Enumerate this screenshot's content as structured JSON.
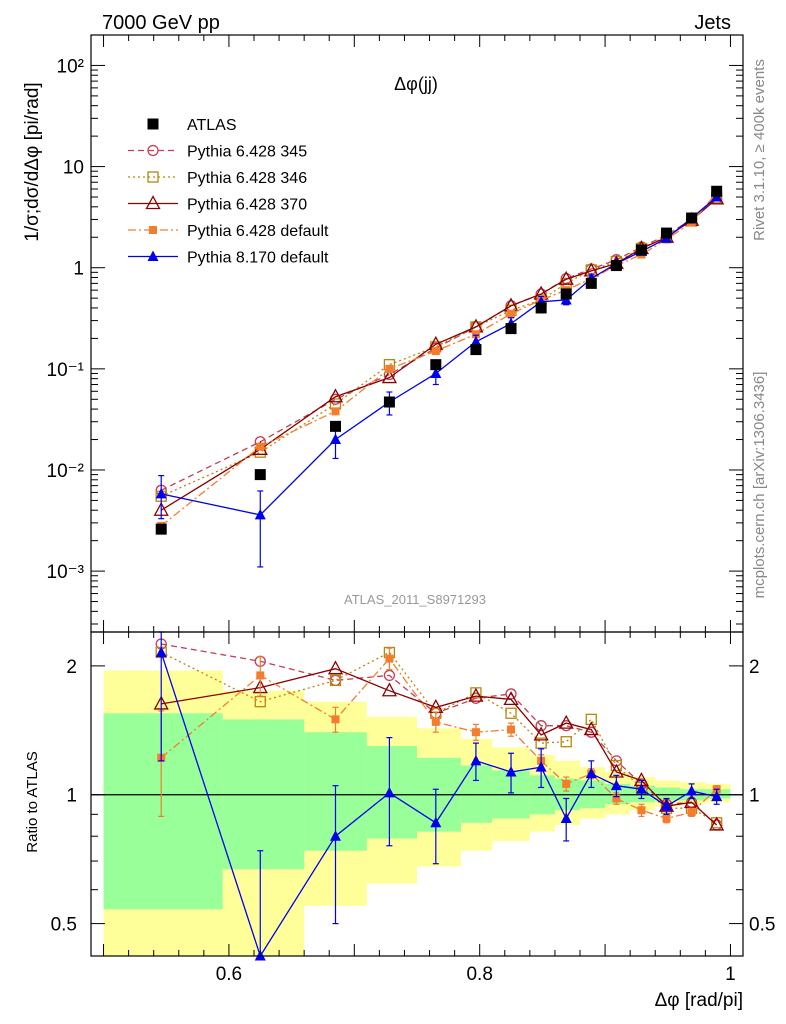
{
  "header": {
    "left": "7000 GeV pp",
    "right": "Jets"
  },
  "plot_title": "Δφ(jj)",
  "watermark": "ATLAS_2011_S8971293",
  "side_labels": {
    "rivet": "Rivet 3.1.10, ≥ 400k events",
    "source": "mcplots.cern.ch [arXiv:1306.3436]"
  },
  "chart_data": [
    {
      "type": "scatter",
      "panel": "main",
      "yscale": "log",
      "ylabel": "1/σ;dσ/dΔφ [pi/rad]",
      "xlim": [
        0.49,
        1.01
      ],
      "ylim": [
        0.00025,
        200
      ],
      "y_ticks": [
        {
          "value": 0.001,
          "label": "10⁻³"
        },
        {
          "value": 0.01,
          "label": "10⁻²"
        },
        {
          "value": 0.1,
          "label": "10⁻¹"
        },
        {
          "value": 1,
          "label": "1"
        },
        {
          "value": 10,
          "label": "10"
        },
        {
          "value": 100,
          "label": "10²"
        }
      ],
      "legend_position": "top-left",
      "series": [
        {
          "name": "ATLAS",
          "color": "#000000",
          "marker": "square-filled",
          "line": "none",
          "x": [
            0.546,
            0.625,
            0.685,
            0.728,
            0.765,
            0.797,
            0.825,
            0.849,
            0.869,
            0.889,
            0.909,
            0.929,
            0.949,
            0.969,
            0.989
          ],
          "y": [
            0.0026,
            0.009,
            0.027,
            0.047,
            0.11,
            0.155,
            0.25,
            0.4,
            0.55,
            0.7,
            1.05,
            1.5,
            2.2,
            3.1,
            5.7
          ]
        },
        {
          "name": "Pythia 6.428 345",
          "color": "#c33e56",
          "marker": "circle-open",
          "line": "dashed",
          "x": [
            0.546,
            0.625,
            0.685,
            0.728,
            0.765,
            0.797,
            0.825,
            0.849,
            0.869,
            0.889,
            0.909,
            0.929,
            0.949,
            0.969,
            0.989
          ],
          "y": [
            0.0063,
            0.019,
            0.05,
            0.088,
            0.16,
            0.26,
            0.42,
            0.55,
            0.78,
            0.97,
            1.2,
            1.6,
            2.1,
            3.0,
            4.8
          ]
        },
        {
          "name": "Pythia 6.428 346",
          "color": "#b8860b",
          "marker": "square-open",
          "line": "dotted",
          "x": [
            0.546,
            0.625,
            0.685,
            0.728,
            0.765,
            0.797,
            0.825,
            0.849,
            0.869,
            0.889,
            0.909,
            0.929,
            0.949,
            0.969,
            0.989
          ],
          "y": [
            0.0055,
            0.015,
            0.045,
            0.11,
            0.165,
            0.26,
            0.38,
            0.48,
            0.7,
            0.95,
            1.15,
            1.55,
            2.05,
            2.9,
            4.9
          ]
        },
        {
          "name": "Pythia 6.428 370",
          "color": "#8b0000",
          "marker": "triangle-open",
          "line": "solid",
          "x": [
            0.546,
            0.625,
            0.685,
            0.728,
            0.765,
            0.797,
            0.825,
            0.849,
            0.869,
            0.889,
            0.909,
            0.929,
            0.949,
            0.969,
            0.989
          ],
          "y": [
            0.004,
            0.016,
            0.053,
            0.082,
            0.175,
            0.26,
            0.42,
            0.55,
            0.77,
            0.93,
            1.1,
            1.55,
            2.0,
            2.95,
            4.8
          ]
        },
        {
          "name": "Pythia 6.428 default",
          "color": "#f47c2c",
          "marker": "square-filled-small",
          "line": "dashdot",
          "x": [
            0.546,
            0.625,
            0.685,
            0.728,
            0.765,
            0.797,
            0.825,
            0.849,
            0.869,
            0.889,
            0.909,
            0.929,
            0.949,
            0.969,
            0.989
          ],
          "y": [
            0.0028,
            0.017,
            0.038,
            0.1,
            0.15,
            0.22,
            0.35,
            0.48,
            0.6,
            0.78,
            1.05,
            1.35,
            1.9,
            2.8,
            5.5
          ]
        },
        {
          "name": "Pythia 8.170 default",
          "color": "#0000ee",
          "marker": "triangle-filled",
          "line": "solid",
          "x": [
            0.546,
            0.625,
            0.685,
            0.728,
            0.765,
            0.797,
            0.825,
            0.849,
            0.869,
            0.889,
            0.909,
            0.929,
            0.949,
            0.969,
            0.989
          ],
          "y": [
            0.0058,
            0.0036,
            0.02,
            0.047,
            0.09,
            0.185,
            0.28,
            0.46,
            0.48,
            0.78,
            1.1,
            1.45,
            1.95,
            3.1,
            5.0
          ],
          "err_low": [
            0.0025,
            0.0025,
            0.007,
            0.012,
            0.02,
            0.03,
            0.04,
            0.06,
            0.05,
            0.07,
            0.08,
            0.1,
            0.12,
            0.15,
            0.2
          ],
          "err_high": [
            0.003,
            0.0026,
            0.007,
            0.012,
            0.02,
            0.03,
            0.04,
            0.06,
            0.05,
            0.07,
            0.08,
            0.1,
            0.12,
            0.15,
            0.2
          ]
        }
      ]
    },
    {
      "type": "line",
      "panel": "ratio",
      "yscale": "log",
      "ylabel": "Ratio to ATLAS",
      "xlabel": "Δφ [rad/pi]",
      "xlim": [
        0.49,
        1.01
      ],
      "ylim": [
        0.42,
        2.4
      ],
      "x_ticks": [
        {
          "value": 0.6,
          "label": "0.6"
        },
        {
          "value": 0.8,
          "label": "0.8"
        },
        {
          "value": 1,
          "label": "1"
        }
      ],
      "y_ticks": [
        {
          "value": 0.5,
          "label": "0.5"
        },
        {
          "value": 1,
          "label": "1"
        },
        {
          "value": 2,
          "label": "2"
        }
      ],
      "bin_edges": [
        0.5,
        0.595,
        0.66,
        0.71,
        0.75,
        0.785,
        0.81,
        0.84,
        0.86,
        0.88,
        0.9,
        0.92,
        0.94,
        0.96,
        0.98,
        1.0
      ],
      "band_1sigma": [
        [
          0.54,
          1.55
        ],
        [
          0.67,
          1.5
        ],
        [
          0.74,
          1.4
        ],
        [
          0.79,
          1.3
        ],
        [
          0.82,
          1.22
        ],
        [
          0.86,
          1.17
        ],
        [
          0.88,
          1.14
        ],
        [
          0.9,
          1.11
        ],
        [
          0.92,
          1.09
        ],
        [
          0.93,
          1.08
        ],
        [
          0.95,
          1.06
        ],
        [
          0.96,
          1.05
        ],
        [
          0.97,
          1.04
        ],
        [
          0.97,
          1.03
        ],
        [
          0.98,
          1.03
        ]
      ],
      "band_2sigma": [
        [
          0.38,
          1.95
        ],
        [
          0.38,
          1.75
        ],
        [
          0.55,
          1.65
        ],
        [
          0.62,
          1.52
        ],
        [
          0.68,
          1.43
        ],
        [
          0.74,
          1.35
        ],
        [
          0.78,
          1.29
        ],
        [
          0.82,
          1.24
        ],
        [
          0.85,
          1.2
        ],
        [
          0.88,
          1.16
        ],
        [
          0.9,
          1.13
        ],
        [
          0.92,
          1.1
        ],
        [
          0.94,
          1.08
        ],
        [
          0.95,
          1.07
        ],
        [
          0.96,
          1.06
        ]
      ],
      "series": [
        {
          "name": "Pythia 6.428 345",
          "color": "#c33e56",
          "marker": "circle-open",
          "line": "dashed",
          "x": [
            0.546,
            0.625,
            0.685,
            0.728,
            0.765,
            0.797,
            0.825,
            0.849,
            0.869,
            0.889,
            0.909,
            0.929,
            0.949,
            0.969,
            0.989
          ],
          "y": [
            2.25,
            2.05,
            1.85,
            1.9,
            1.55,
            1.68,
            1.72,
            1.45,
            1.45,
            1.4,
            1.2,
            1.06,
            0.95,
            0.96,
            0.85
          ]
        },
        {
          "name": "Pythia 6.428 346",
          "color": "#b8860b",
          "marker": "square-open",
          "line": "dotted",
          "x": [
            0.546,
            0.625,
            0.685,
            0.728,
            0.765,
            0.797,
            0.825,
            0.849,
            0.869,
            0.889,
            0.909,
            0.929,
            0.949,
            0.969,
            0.989
          ],
          "y": [
            2.15,
            1.65,
            1.85,
            2.15,
            1.55,
            1.73,
            1.55,
            1.32,
            1.33,
            1.5,
            1.17,
            1.04,
            0.93,
            0.93,
            0.86
          ]
        },
        {
          "name": "Pythia 6.428 370",
          "color": "#8b0000",
          "marker": "triangle-open",
          "line": "solid",
          "x": [
            0.546,
            0.625,
            0.685,
            0.728,
            0.765,
            0.797,
            0.825,
            0.849,
            0.869,
            0.889,
            0.909,
            0.929,
            0.949,
            0.969,
            0.989
          ],
          "y": [
            1.63,
            1.78,
            1.97,
            1.75,
            1.6,
            1.7,
            1.67,
            1.38,
            1.47,
            1.42,
            1.13,
            1.08,
            0.94,
            0.96,
            0.85
          ]
        },
        {
          "name": "Pythia 6.428 default",
          "color": "#f47c2c",
          "marker": "square-filled-small",
          "line": "dashdot",
          "x": [
            0.546,
            0.625,
            0.685,
            0.728,
            0.765,
            0.797,
            0.825,
            0.849,
            0.869,
            0.889,
            0.909,
            0.929,
            0.949,
            0.969,
            0.989
          ],
          "y": [
            1.22,
            1.9,
            1.5,
            2.08,
            1.48,
            1.4,
            1.42,
            1.2,
            1.06,
            1.12,
            0.98,
            0.92,
            0.88,
            0.91,
            1.03
          ],
          "err_low": [
            0.33,
            0.2,
            0.1,
            0.12,
            0.08,
            0.06,
            0.05,
            0.04,
            0.04,
            0.03,
            0.03,
            0.03,
            0.02,
            0.02,
            0.02
          ],
          "err_high": [
            0.35,
            0.2,
            0.1,
            0.12,
            0.08,
            0.06,
            0.05,
            0.04,
            0.04,
            0.03,
            0.03,
            0.03,
            0.02,
            0.02,
            0.02
          ]
        },
        {
          "name": "Pythia 8.170 default",
          "color": "#0000ee",
          "marker": "triangle-filled",
          "line": "solid",
          "x": [
            0.546,
            0.625,
            0.685,
            0.728,
            0.765,
            0.797,
            0.825,
            0.849,
            0.869,
            0.889,
            0.909,
            0.929,
            0.949,
            0.969,
            0.989
          ],
          "y": [
            2.15,
            0.42,
            0.8,
            1.01,
            0.86,
            1.2,
            1.13,
            1.16,
            0.88,
            1.12,
            1.05,
            1.03,
            0.94,
            1.02,
            0.99
          ],
          "err_low": [
            0.95,
            0.2,
            0.3,
            0.25,
            0.17,
            0.12,
            0.12,
            0.12,
            0.1,
            0.08,
            0.06,
            0.05,
            0.04,
            0.04,
            0.04
          ],
          "err_high": [
            0.25,
            0.32,
            0.25,
            0.35,
            0.17,
            0.12,
            0.12,
            0.12,
            0.1,
            0.08,
            0.06,
            0.05,
            0.04,
            0.04,
            0.04
          ]
        }
      ]
    }
  ]
}
